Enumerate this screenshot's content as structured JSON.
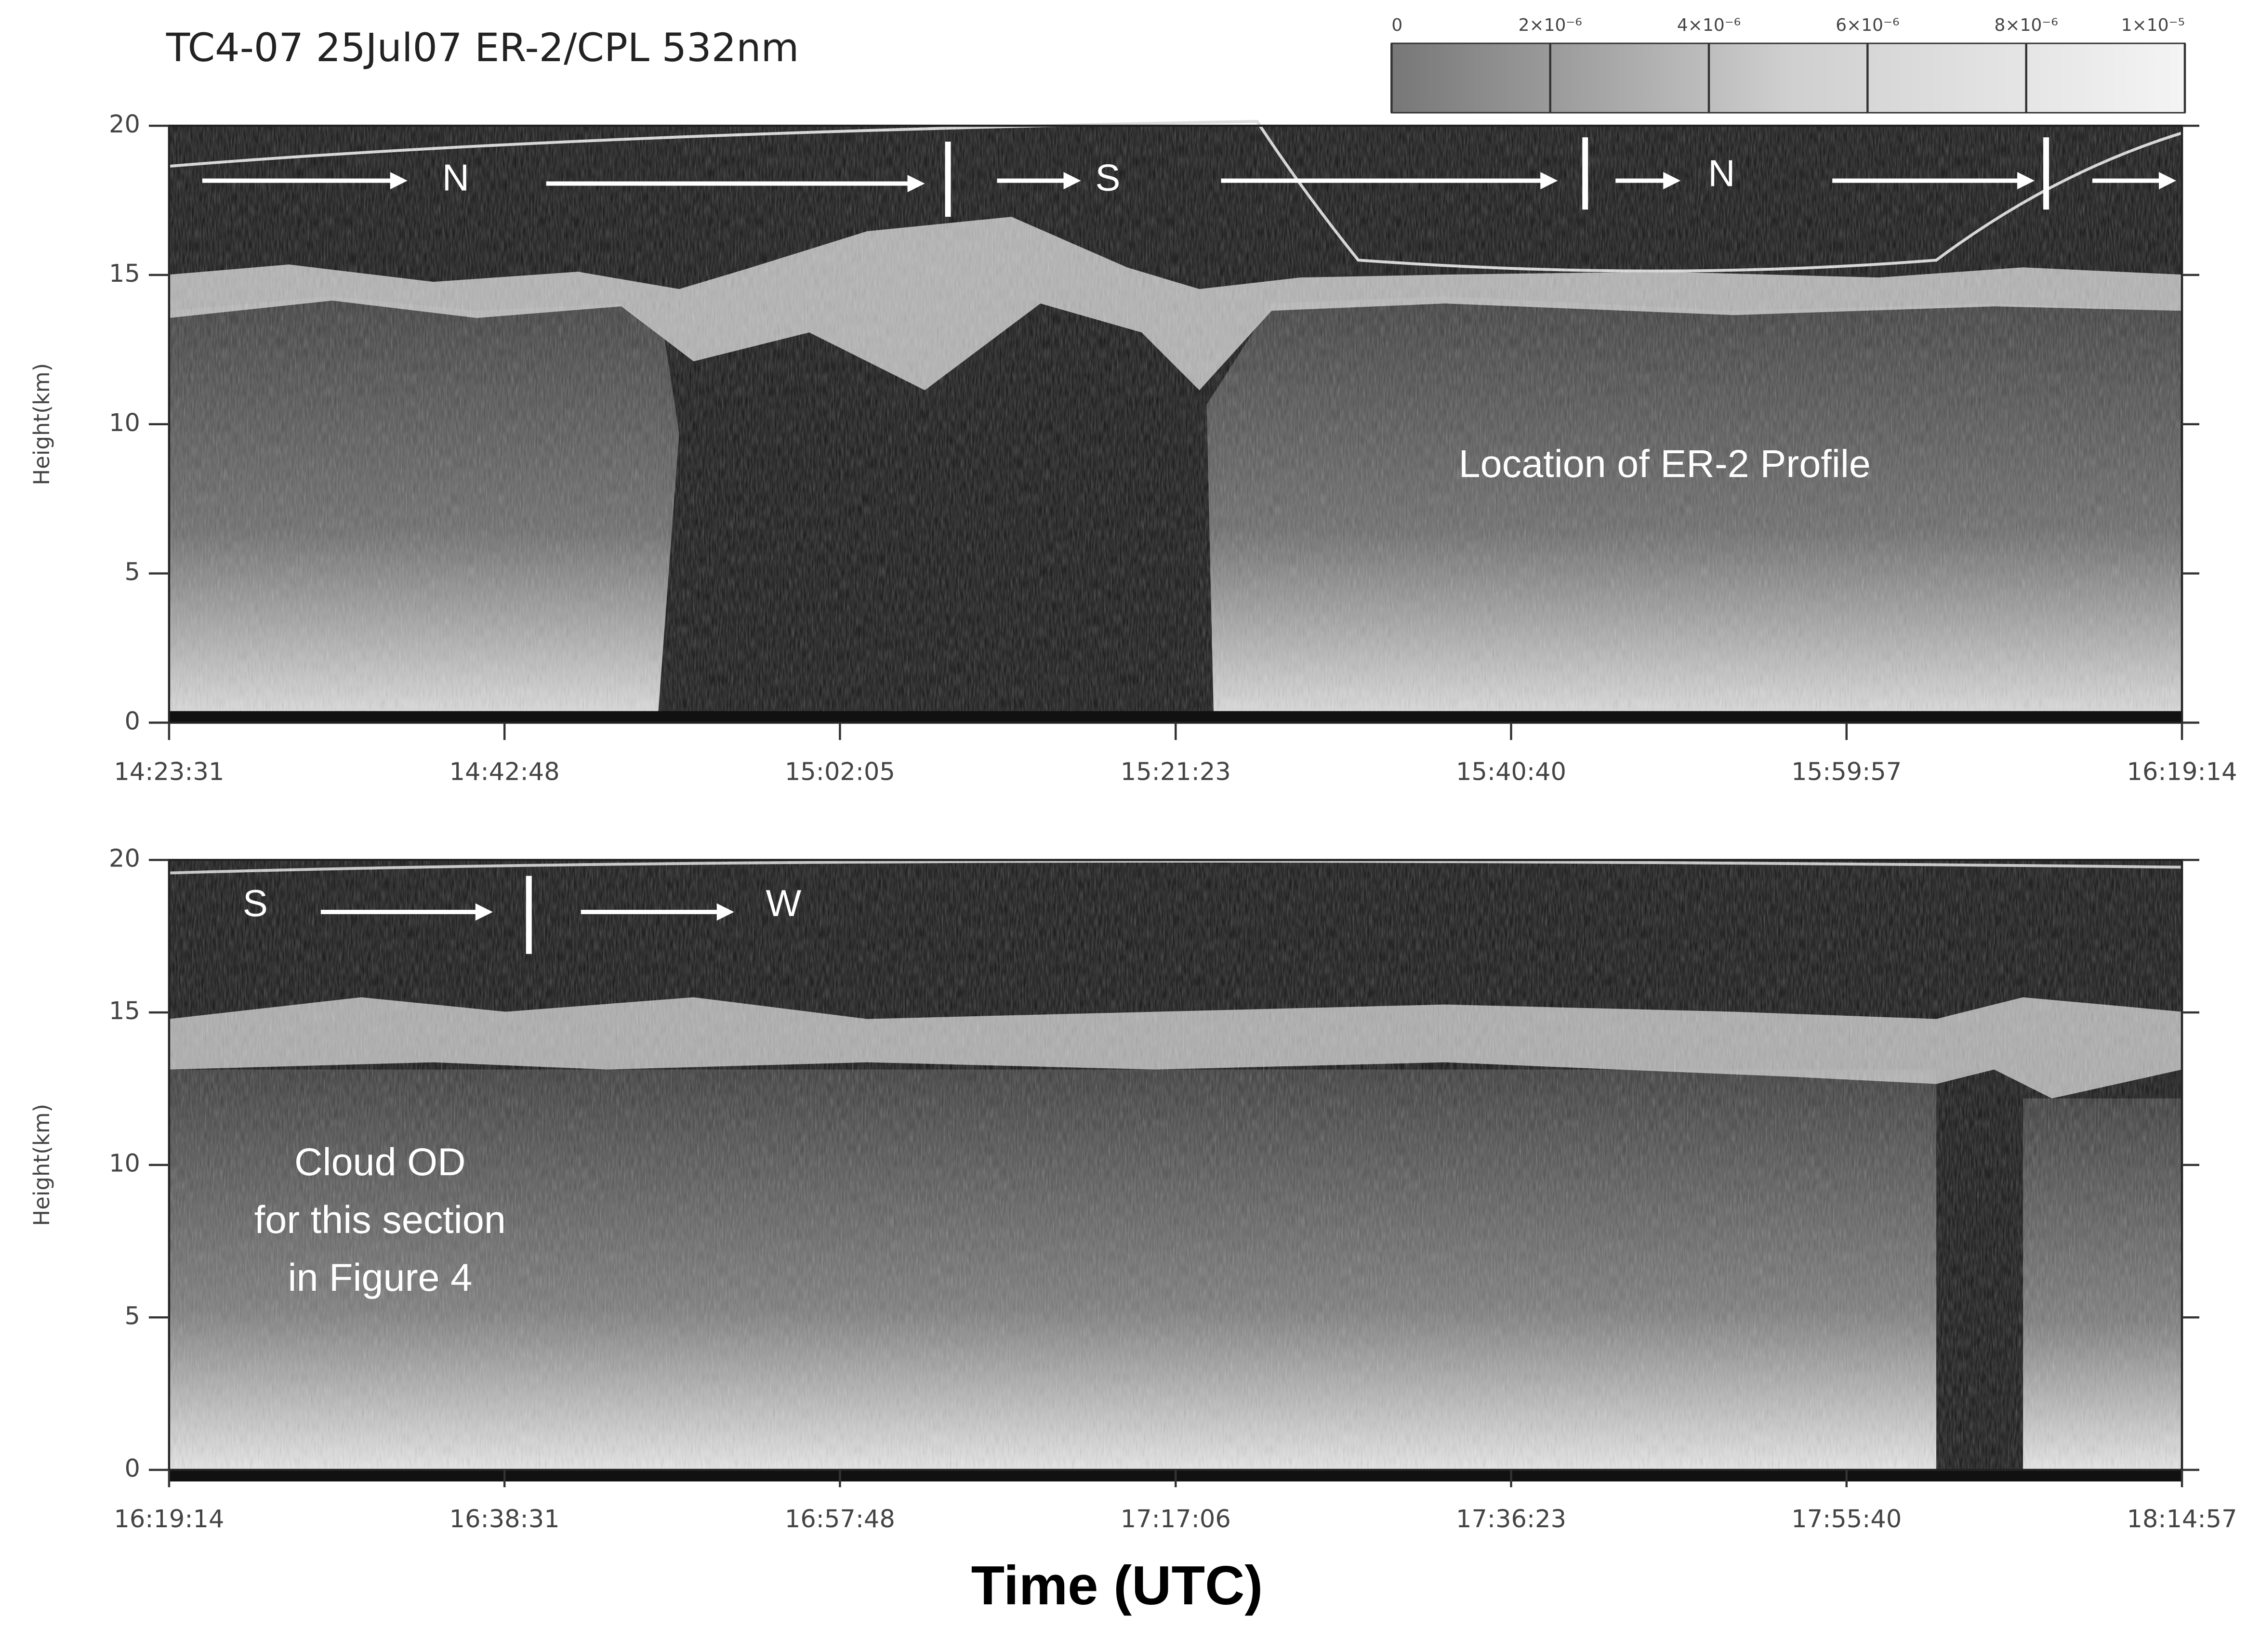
{
  "chart_data": [
    {
      "type": "heatmap",
      "title": "TC4-07 25Jul07 ER-2/CPL 532nm",
      "colorbar": {
        "lim": [
          0,
          1e-05
        ],
        "ticks": [
          0,
          {
            "value": 2e-06,
            "label": "2×10⁻⁶"
          },
          {
            "value": 4e-06,
            "label": "4×10⁻⁶"
          },
          {
            "value": 6e-06,
            "label": "6×10⁻⁶"
          },
          {
            "value": 8e-06,
            "label": "8×10⁻⁶"
          },
          {
            "value": 1e-05,
            "label": "1×10⁻⁵"
          }
        ]
      },
      "ylabel": "Height(km)",
      "ylim": [
        0,
        20
      ],
      "yticks": [
        0,
        5,
        10,
        15,
        20
      ],
      "xlim": [
        "14:23:31",
        "16:19:14"
      ],
      "xticks": [
        "14:23:31",
        "14:42:48",
        "15:02:05",
        "15:21:23",
        "15:40:40",
        "15:59:57",
        "16:19:14"
      ],
      "direction_labels": [
        "N",
        "S",
        "N"
      ],
      "annotation": "Location of ER-2 Profile"
    },
    {
      "type": "heatmap",
      "ylabel": "Height(km)",
      "ylim": [
        0,
        20
      ],
      "yticks": [
        0,
        5,
        10,
        15,
        20
      ],
      "xlim": [
        "16:19:14",
        "18:14:57"
      ],
      "xticks": [
        "16:19:14",
        "16:38:31",
        "16:57:48",
        "17:17:06",
        "17:36:23",
        "17:55:40",
        "18:14:57"
      ],
      "direction_labels": [
        "S",
        "W"
      ],
      "annotation": [
        "Cloud OD",
        "for this section",
        "in Figure 4"
      ],
      "xlabel": "Time (UTC)"
    }
  ]
}
